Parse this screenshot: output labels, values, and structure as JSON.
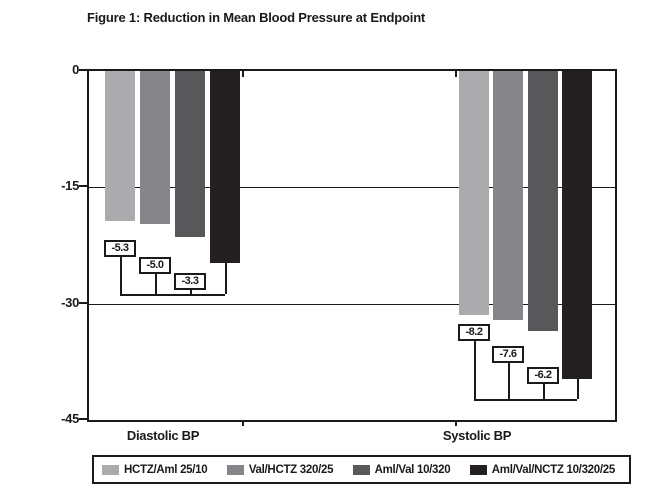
{
  "title": "Figure 1: Reduction in Mean Blood Pressure at Endpoint",
  "chart_data": {
    "type": "bar",
    "title": "Figure 1: Reduction in Mean Blood Pressure at Endpoint",
    "groups": [
      "Diastolic BP",
      "Systolic BP"
    ],
    "series": [
      {
        "name": "HCTZ/Aml 25/10",
        "color": "#ababad",
        "values": [
          -19.4,
          -31.5
        ]
      },
      {
        "name": "Val/HCTZ 320/25",
        "color": "#86868a",
        "values": [
          -19.7,
          -32.1
        ]
      },
      {
        "name": "Aml/Val 10/320",
        "color": "#58585a",
        "values": [
          -21.4,
          -33.5
        ]
      },
      {
        "name": "Aml/Val/NCTZ 10/320/25",
        "color": "#231f20",
        "values": [
          -24.7,
          -39.7
        ]
      }
    ],
    "annotations": [
      {
        "group": "Diastolic BP",
        "labels": [
          "-5.3",
          "-5.0",
          "-3.3"
        ]
      },
      {
        "group": "Systolic BP",
        "labels": [
          "-8.2",
          "-7.6",
          "-6.2"
        ]
      }
    ],
    "yticks": [
      0,
      -15,
      -30,
      -45
    ],
    "ytick_labels": [
      "0",
      "-15",
      "-30",
      "-45"
    ],
    "ylim": [
      -45,
      0
    ],
    "xlabel": "",
    "ylabel": "",
    "grid": true,
    "legend_position": "bottom",
    "frame_color": "#1a1a1a"
  },
  "legend": {
    "items": [
      "HCTZ/Aml 25/10",
      "Val/HCTZ 320/25",
      "Aml/Val 10/320",
      "Aml/Val/NCTZ 10/320/25"
    ]
  }
}
